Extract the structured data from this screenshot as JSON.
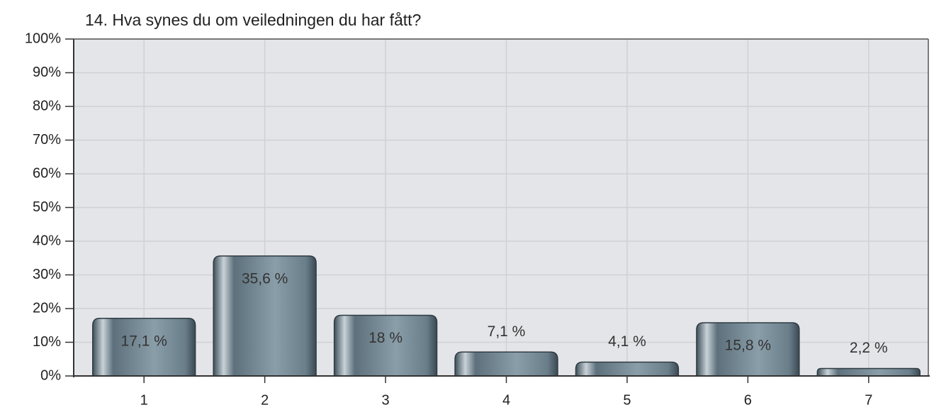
{
  "chart_data": {
    "type": "bar",
    "title": "14. Hva synes du om veiledningen du har fått?",
    "categories": [
      "1",
      "2",
      "3",
      "4",
      "5",
      "6",
      "7"
    ],
    "values": [
      17.1,
      35.6,
      18,
      7.1,
      4.1,
      15.8,
      2.2
    ],
    "value_labels": [
      "17,1 %",
      "35,6 %",
      "18 %",
      "7,1 %",
      "4,1 %",
      "15,8 %",
      "2,2 %"
    ],
    "color": "#6f8490",
    "ylim": [
      0,
      100
    ],
    "yticks": [
      {
        "value": 0,
        "label": "0%"
      },
      {
        "value": 10,
        "label": "10%"
      },
      {
        "value": 20,
        "label": "20%"
      },
      {
        "value": 30,
        "label": "30%"
      },
      {
        "value": 40,
        "label": "40%"
      },
      {
        "value": 50,
        "label": "50%"
      },
      {
        "value": 60,
        "label": "60%"
      },
      {
        "value": 70,
        "label": "70%"
      },
      {
        "value": 80,
        "label": "80%"
      },
      {
        "value": 90,
        "label": "90%"
      },
      {
        "value": 100,
        "label": "100%"
      }
    ],
    "grid": true
  }
}
